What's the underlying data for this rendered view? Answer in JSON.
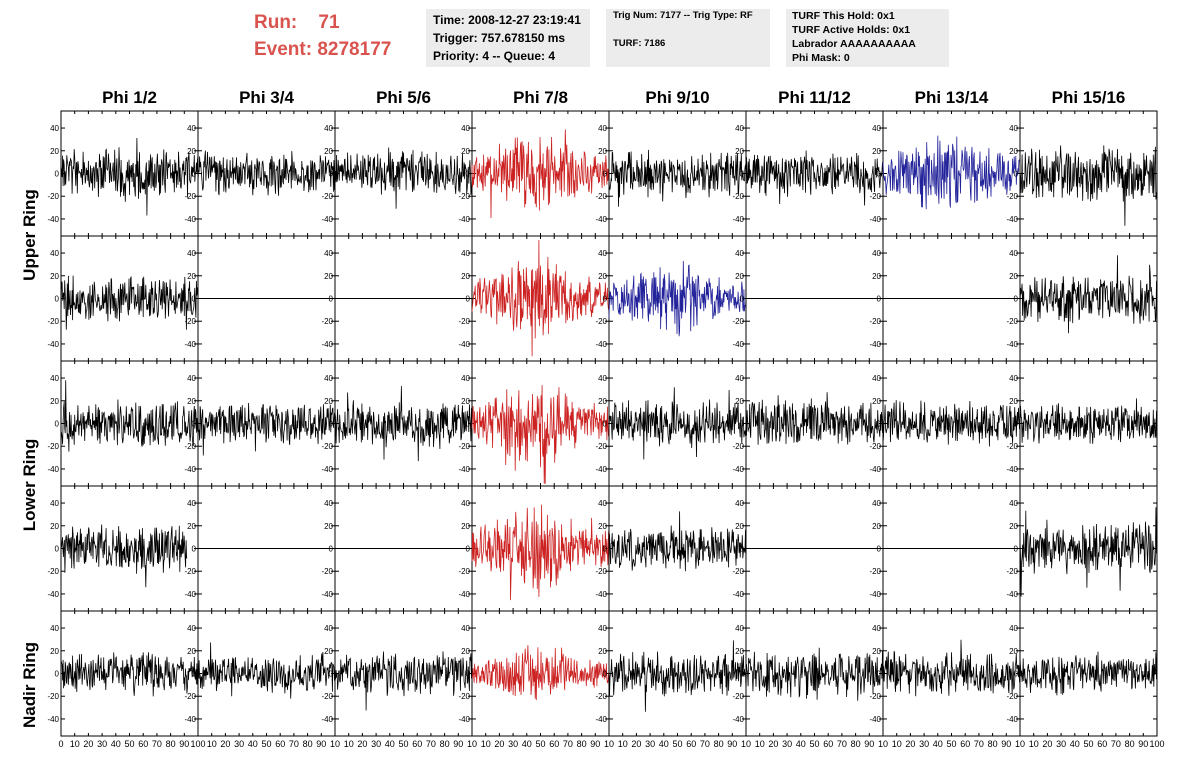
{
  "header": {
    "run_label": "Run:",
    "run_value": "71",
    "event_label": "Event:",
    "event_value": "8278177",
    "time": "Time: 2008-12-27 23:19:41",
    "trigger": "Trigger: 757.678150 ms",
    "priority": "Priority: 4 -- Queue: 4",
    "trig_num": "Trig Num: 7177 -- Trig Type: RF",
    "turf": "TURF: 7186",
    "turf_this_hold": "TURF This Hold: 0x1",
    "turf_active_holds": "TURF Active Holds: 0x1",
    "labrador": "Labrador AAAAAAAAAA",
    "phi_mask": "Phi Mask: 0"
  },
  "columns": [
    "Phi 1/2",
    "Phi 3/4",
    "Phi 5/6",
    "Phi 7/8",
    "Phi 9/10",
    "Phi 11/12",
    "Phi 13/14",
    "Phi 15/16"
  ],
  "rows": [
    "Upper Ring",
    "Lower Ring",
    "Nadir Ring"
  ],
  "colors": {
    "red": "#cc2222",
    "blue": "#22229a",
    "black": "#000000",
    "title_red": "#d9534f"
  },
  "chart_data": {
    "type": "line",
    "panel_rows": 5,
    "panel_cols": 8,
    "ylim": [
      -55,
      55
    ],
    "xlim": [
      0,
      100
    ],
    "y_ticks": [
      -40,
      -20,
      0,
      20,
      40
    ],
    "x_ticks": [
      0,
      10,
      20,
      30,
      40,
      50,
      60,
      70,
      80,
      90,
      100
    ],
    "x_tick_labels_first": [
      "0",
      "10",
      "20",
      "30",
      "40",
      "50",
      "60",
      "70",
      "80",
      "90",
      "100"
    ],
    "x_tick_labels_other": [
      "0",
      "10",
      "20",
      "30",
      "40",
      "50",
      "60",
      "70",
      "80",
      "90",
      "10"
    ],
    "panels": [
      [
        {
          "state": "signal",
          "color": "black",
          "amp": 16,
          "seed": 11,
          "x_end": 100
        },
        {
          "state": "signal",
          "color": "black",
          "amp": 14,
          "seed": 12,
          "x_end": 100
        },
        {
          "state": "signal",
          "color": "black",
          "amp": 14,
          "seed": 13,
          "x_end": 100
        },
        {
          "state": "signal",
          "color": "red",
          "amp": 22,
          "seed": 14,
          "x_end": 100
        },
        {
          "state": "signal",
          "color": "black",
          "amp": 15,
          "seed": 15,
          "x_end": 100
        },
        {
          "state": "signal",
          "color": "black",
          "amp": 14,
          "seed": 16,
          "x_end": 100
        },
        {
          "state": "signal",
          "color": "blue",
          "amp": 22,
          "seed": 17,
          "x_end": 100
        },
        {
          "state": "signal",
          "color": "black",
          "amp": 18,
          "seed": 18,
          "x_end": 100
        }
      ],
      [
        {
          "state": "signal",
          "color": "black",
          "amp": 15,
          "seed": 21,
          "x_end": 100
        },
        {
          "state": "flat",
          "color": "black",
          "seed": 22,
          "x_end": 100
        },
        {
          "state": "flat",
          "color": "black",
          "seed": 23,
          "x_end": 100
        },
        {
          "state": "signal",
          "color": "red",
          "amp": 22,
          "seed": 24,
          "x_end": 100
        },
        {
          "state": "signal",
          "color": "blue",
          "amp": 20,
          "seed": 25,
          "x_end": 100
        },
        {
          "state": "flat",
          "color": "black",
          "seed": 26,
          "x_end": 100
        },
        {
          "state": "flat",
          "color": "black",
          "seed": 27,
          "x_end": 100
        },
        {
          "state": "signal",
          "color": "black",
          "amp": 16,
          "seed": 28,
          "x_end": 100
        }
      ],
      [
        {
          "state": "signal",
          "color": "black",
          "amp": 15,
          "seed": 31,
          "x_end": 100
        },
        {
          "state": "signal",
          "color": "black",
          "amp": 13,
          "seed": 32,
          "x_end": 100
        },
        {
          "state": "signal",
          "color": "black",
          "amp": 15,
          "seed": 33,
          "x_end": 100
        },
        {
          "state": "signal",
          "color": "red",
          "amp": 22,
          "seed": 34,
          "x_end": 100
        },
        {
          "state": "signal",
          "color": "black",
          "amp": 15,
          "seed": 35,
          "x_end": 100
        },
        {
          "state": "signal",
          "color": "black",
          "amp": 15,
          "seed": 36,
          "x_end": 100
        },
        {
          "state": "signal",
          "color": "black",
          "amp": 15,
          "seed": 37,
          "x_end": 100
        },
        {
          "state": "signal",
          "color": "black",
          "amp": 13,
          "seed": 38,
          "x_end": 100
        }
      ],
      [
        {
          "state": "signal",
          "color": "black",
          "amp": 15,
          "seed": 41,
          "x_end": 92
        },
        {
          "state": "flat",
          "color": "black",
          "seed": 42,
          "x_end": 100
        },
        {
          "state": "flat",
          "color": "black",
          "seed": 43,
          "x_end": 100
        },
        {
          "state": "signal",
          "color": "red",
          "amp": 24,
          "seed": 44,
          "x_end": 100
        },
        {
          "state": "signal",
          "color": "black",
          "amp": 14,
          "seed": 45,
          "x_end": 100
        },
        {
          "state": "flat",
          "color": "black",
          "seed": 46,
          "x_end": 100
        },
        {
          "state": "flat",
          "color": "black",
          "seed": 47,
          "x_end": 100
        },
        {
          "state": "signal",
          "color": "black",
          "amp": 17,
          "seed": 48,
          "x_end": 100
        }
      ],
      [
        {
          "state": "signal",
          "color": "black",
          "amp": 14,
          "seed": 51,
          "x_end": 100
        },
        {
          "state": "signal",
          "color": "black",
          "amp": 13,
          "seed": 52,
          "x_end": 100
        },
        {
          "state": "signal",
          "color": "black",
          "amp": 14,
          "seed": 53,
          "x_end": 100
        },
        {
          "state": "signal",
          "color": "red",
          "amp": 15,
          "seed": 54,
          "x_end": 100
        },
        {
          "state": "signal",
          "color": "black",
          "amp": 14,
          "seed": 55,
          "x_end": 100
        },
        {
          "state": "signal",
          "color": "black",
          "amp": 16,
          "seed": 56,
          "x_end": 100
        },
        {
          "state": "signal",
          "color": "black",
          "amp": 14,
          "seed": 57,
          "x_end": 100
        },
        {
          "state": "signal",
          "color": "black",
          "amp": 14,
          "seed": 58,
          "x_end": 100
        }
      ]
    ]
  }
}
